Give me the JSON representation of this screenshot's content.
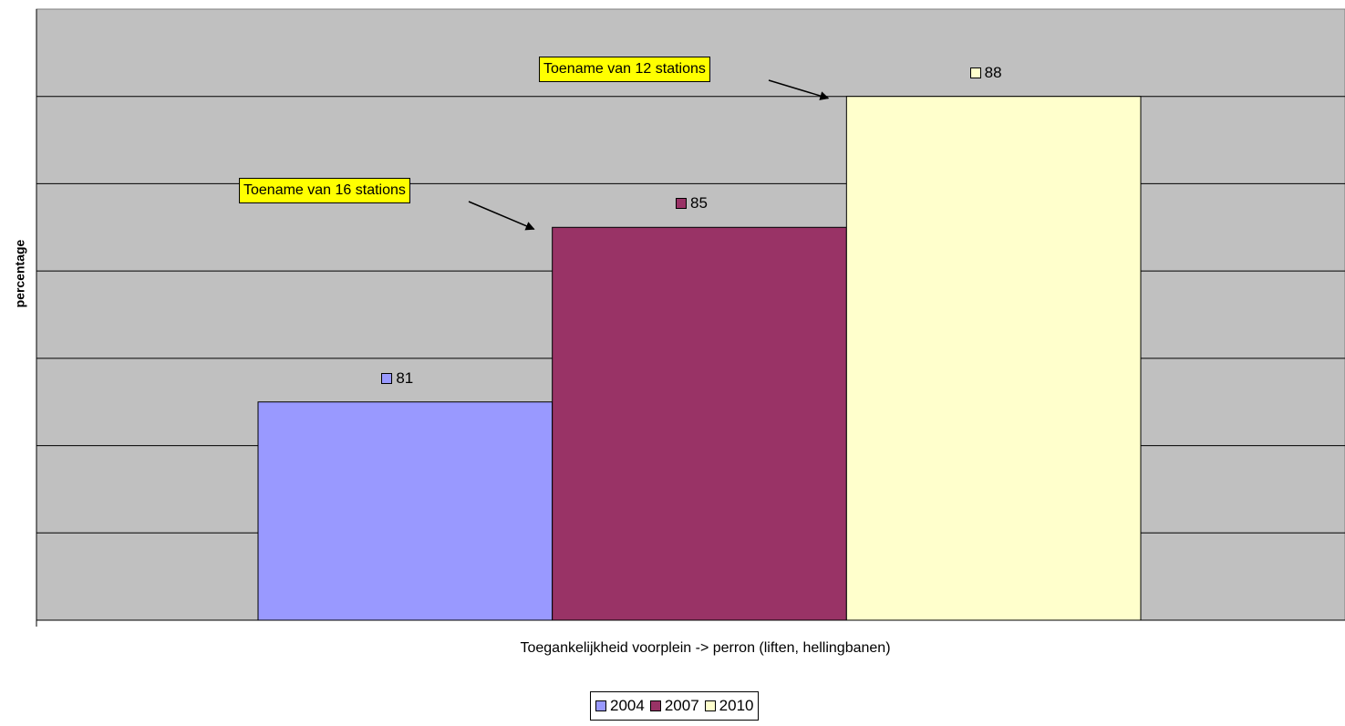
{
  "chart_data": {
    "type": "bar",
    "title": "",
    "xlabel": "Toegankelijkheid voorplein -> perron (liften, hellingbanen)",
    "ylabel": "percentage",
    "ylim": [
      76,
      90
    ],
    "grid": true,
    "legend_position": "bottom",
    "plot_background": "#c0c0c0",
    "series": [
      {
        "name": "2004",
        "value": 81,
        "color": "#9999ff"
      },
      {
        "name": "2007",
        "value": 85,
        "color": "#993366"
      },
      {
        "name": "2010",
        "value": 88,
        "color": "#ffffcc"
      }
    ],
    "annotations": [
      {
        "text": "Toename van 16 stations",
        "target_series": "2007"
      },
      {
        "text": "Toename van 12 stations",
        "target_series": "2010"
      }
    ]
  }
}
